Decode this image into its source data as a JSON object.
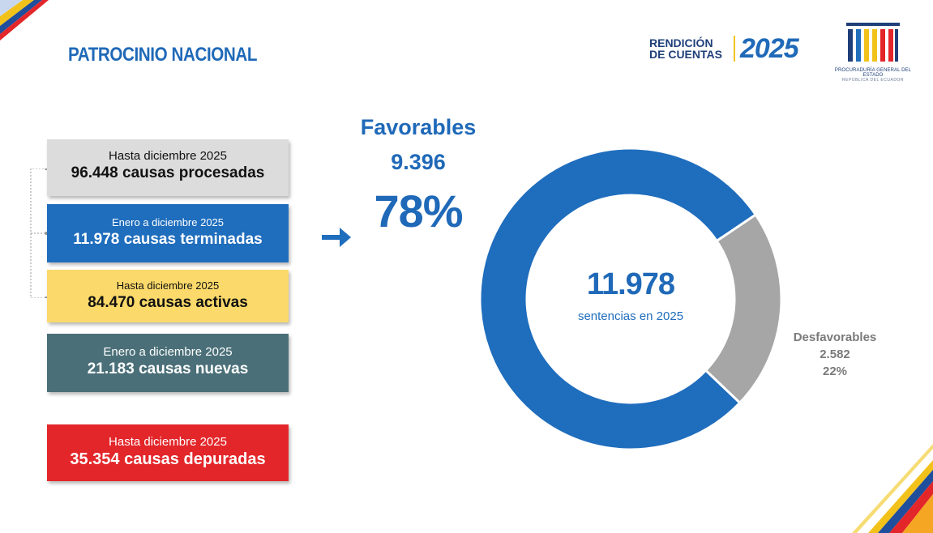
{
  "header": {
    "title": "PATROCINIO NACIONAL",
    "logo_words": [
      "RENDICIÓN",
      "DE CUENTAS"
    ],
    "logo_year": "2025",
    "institution_name": "PROCURADURÍA GENERAL DEL ESTADO",
    "institution_sub": "REPÚBLICA DEL ECUADOR"
  },
  "boxes": [
    {
      "period": "Hasta diciembre 2025",
      "headline": "96.448 causas procesadas"
    },
    {
      "period": "Enero a diciembre 2025",
      "headline": "11.978 causas terminadas"
    },
    {
      "period": "Hasta diciembre 2025",
      "headline": "84.470 causas activas"
    },
    {
      "period": "Enero a diciembre 2025",
      "headline": "21.183 causas nuevas"
    },
    {
      "period": "Hasta diciembre 2025",
      "headline": "35.354 causas depuradas"
    }
  ],
  "chart_data": {
    "type": "pie",
    "variant": "donut",
    "center_value": "11.978",
    "center_caption": "sentencias en 2025",
    "slices": [
      {
        "name": "Favorables",
        "value": 9396,
        "label": "9.396",
        "percent": "78%",
        "color": "#1f6dbd"
      },
      {
        "name": "Desfavorables",
        "value": 2582,
        "label": "2.582",
        "percent": "22%",
        "color": "#a6a6a6"
      }
    ]
  },
  "colors": {
    "brand_blue": "#1f69b8",
    "gray_box": "#dcdcdc",
    "yellow_box": "#fbd96a",
    "teal_box": "#4a6f78",
    "red_box": "#e3262a"
  },
  "icons": {
    "arrow": "arrow-right-icon",
    "corner_top_left": "flag-stripes-icon",
    "corner_bottom_right": "flag-stripes-icon"
  }
}
